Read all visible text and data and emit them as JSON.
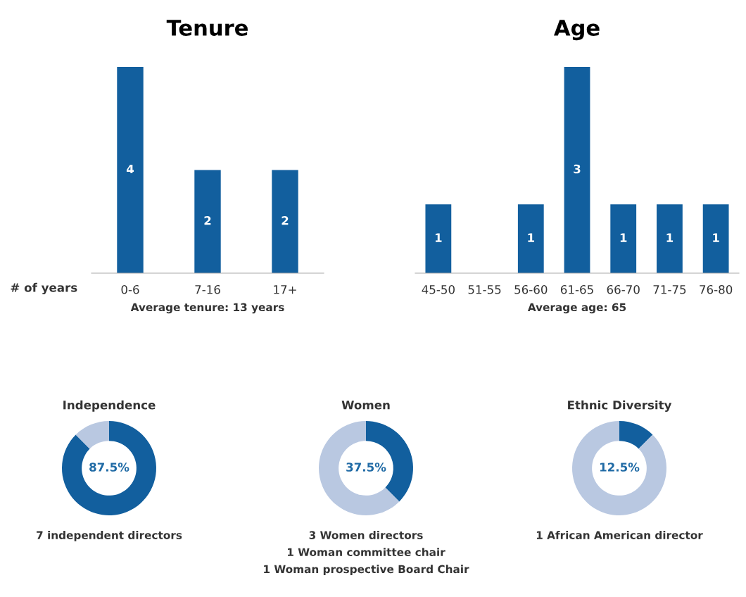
{
  "chart_data": [
    {
      "type": "bar",
      "title": "Tenure",
      "xlabel": "# of years",
      "categories": [
        "0-6",
        "7-16",
        "17+"
      ],
      "values": [
        4,
        2,
        2
      ],
      "color": "#125f9e",
      "data_labels": true,
      "annotations": [
        "Average tenure: 13 years"
      ]
    },
    {
      "type": "bar",
      "title": "Age",
      "categories": [
        "45-50",
        "51-55",
        "56-60",
        "61-65",
        "66-70",
        "71-75",
        "76-80"
      ],
      "values": [
        1,
        0,
        1,
        3,
        1,
        1,
        1
      ],
      "color": "#125f9e",
      "value_labels": [
        "1",
        null,
        "1",
        "3",
        "1",
        "1",
        "1"
      ],
      "annotations": [
        "Average age: 65"
      ]
    },
    {
      "type": "donut",
      "title": "Independence",
      "categories": [
        null,
        null
      ],
      "values": [
        87.5,
        12.5
      ],
      "colors": [
        "#125f9e",
        "#b9c8e1"
      ],
      "value_labels": [
        "87.5%",
        null
      ],
      "annotations": [
        "7 independent directors"
      ]
    },
    {
      "type": "donut",
      "title": "Women",
      "categories": [
        null,
        null
      ],
      "values": [
        37.5,
        62.5
      ],
      "colors": [
        "#125f9e",
        "#b9c8e1"
      ],
      "value_labels": [
        "37.5%",
        null
      ],
      "annotations": [
        "3 Women directors",
        "1 Woman committee chair",
        "1 Woman prospective Board Chair"
      ]
    },
    {
      "type": "donut",
      "title": "Ethnic Diversity",
      "categories": [
        null,
        null
      ],
      "values": [
        12.5,
        87.5
      ],
      "colors": [
        "#125f9e",
        "#b9c8e1"
      ],
      "value_labels": [
        "12.5%",
        null
      ],
      "annotations": [
        "1 African American director"
      ]
    }
  ]
}
